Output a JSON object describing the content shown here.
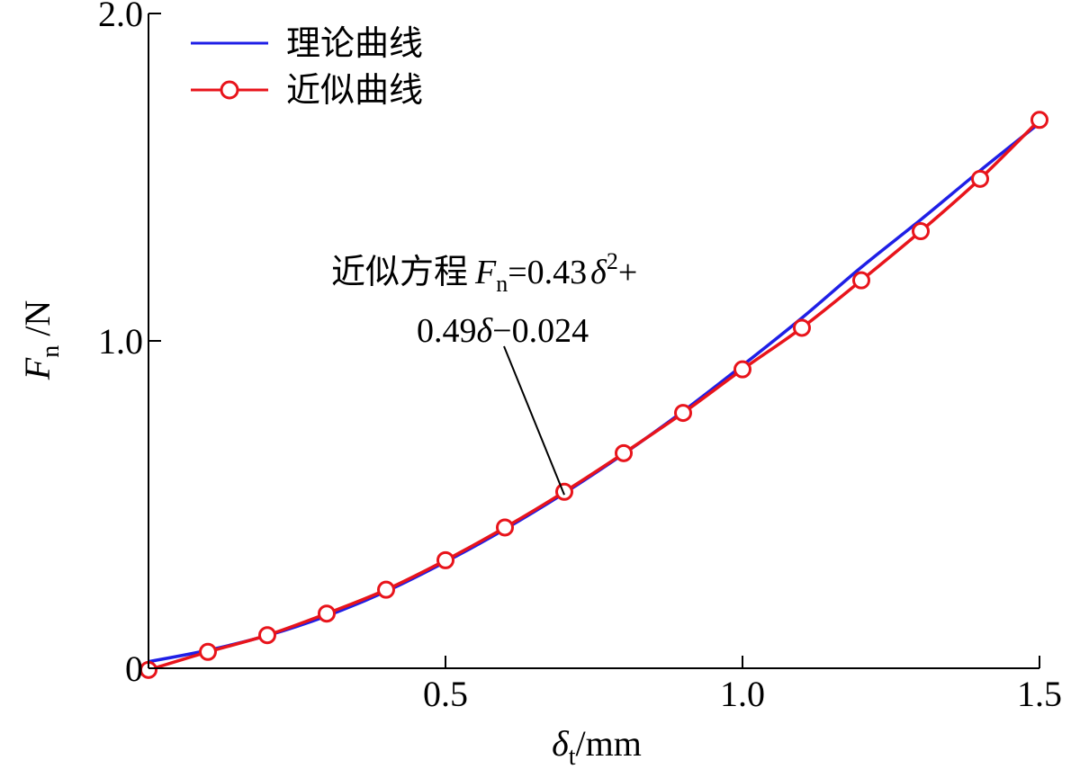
{
  "chart_data": {
    "type": "line",
    "x_axis": {
      "label_symbol": "δ",
      "label_subscript": "t",
      "label_unit": "/mm",
      "range": [
        0,
        1.5
      ],
      "ticks": [
        0.5,
        1.0,
        1.5
      ],
      "tick_labels": [
        "0.5",
        "1.0",
        "1.5"
      ]
    },
    "y_axis": {
      "label_symbol": "F",
      "label_subscript": "n",
      "label_unit": " /N",
      "range": [
        0,
        2.0
      ],
      "ticks": [
        0,
        1.0,
        2.0
      ],
      "tick_labels": [
        "0",
        "1.0",
        "2.0"
      ]
    },
    "legend": {
      "placement": "top-left",
      "entries": [
        "理论曲线",
        "近似曲线"
      ]
    },
    "annotation": {
      "prefix": "近似方程",
      "symbol": "F",
      "subscript": "n",
      "part1": "=0.43",
      "delta": "δ",
      "sup": "2",
      "plus": "+",
      "line2_a": "0.49",
      "line2_b": "−0.024",
      "arrow_target": {
        "x": 0.7,
        "y": 0.53
      }
    },
    "series": [
      {
        "name": "理论曲线",
        "color": "#1f1fe6",
        "marker": "none",
        "x": [
          0,
          0.1,
          0.2,
          0.3,
          0.4,
          0.5,
          0.6,
          0.7,
          0.8,
          0.9,
          1.0,
          1.1,
          1.2,
          1.3,
          1.4,
          1.5
        ],
        "y": [
          0.02,
          0.055,
          0.1,
          0.16,
          0.235,
          0.325,
          0.425,
          0.535,
          0.655,
          0.785,
          0.925,
          1.07,
          1.225,
          1.37,
          1.52,
          1.665
        ]
      },
      {
        "name": "近似曲线",
        "color": "#e8141b",
        "marker": "circle",
        "x": [
          0,
          0.1,
          0.2,
          0.3,
          0.4,
          0.5,
          0.6,
          0.7,
          0.8,
          0.9,
          1.0,
          1.1,
          1.2,
          1.3,
          1.4,
          1.5
        ],
        "y": [
          -0.005,
          0.05,
          0.101,
          0.167,
          0.24,
          0.33,
          0.43,
          0.539,
          0.657,
          0.78,
          0.913,
          1.04,
          1.185,
          1.335,
          1.495,
          1.675
        ]
      }
    ]
  }
}
